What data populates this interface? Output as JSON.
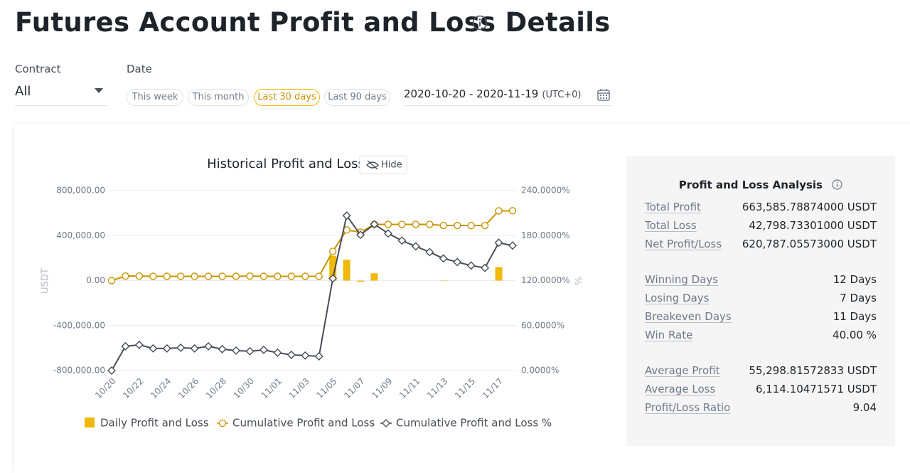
{
  "header": {
    "title": "Futures Account Profit and Loss Details"
  },
  "filters": {
    "contract_label": "Contract",
    "contract_value": "All",
    "date_label": "Date",
    "ranges": [
      "This week",
      "This month",
      "Last 30 days",
      "Last 90 days"
    ],
    "active_range": 2,
    "date_range": "2020-10-20 - 2020-11-19",
    "timezone": "(UTC+0)"
  },
  "chart_data": {
    "type": "line",
    "title": "Historical Profit and Loss",
    "hide_button": "Hide",
    "y_label": "USDT",
    "y2_label": "%",
    "categories": [
      "10/20",
      null,
      "10/22",
      null,
      "10/24",
      null,
      "10/26",
      null,
      "10/28",
      null,
      "10/30",
      null,
      "11/01",
      null,
      "11/03",
      null,
      "11/05",
      null,
      "11/07",
      null,
      "11/09",
      null,
      "11/11",
      null,
      "11/13",
      null,
      "11/15",
      null,
      "11/17",
      null
    ],
    "ylim": [
      -800000,
      800000
    ],
    "yticks": [
      {
        "value": -800000,
        "label": "-800,000.00"
      },
      {
        "value": -400000,
        "label": "-400,000.00"
      },
      {
        "value": 0,
        "label": "0.00"
      },
      {
        "value": 400000,
        "label": "400,000.00"
      },
      {
        "value": 800000,
        "label": "800,000.00"
      }
    ],
    "y2lim": [
      0,
      240
    ],
    "y2ticks": [
      {
        "value": 0,
        "label": "0.0000%"
      },
      {
        "value": 60,
        "label": "60.0000%"
      },
      {
        "value": 120,
        "label": "120.0000%"
      },
      {
        "value": 180,
        "label": "180.0000%"
      },
      {
        "value": 240,
        "label": "240.0000%"
      }
    ],
    "grid": true,
    "series": [
      {
        "name": "Daily Profit and Loss",
        "type": "bar",
        "color": "#f0b90b",
        "values": [
          0,
          0,
          0,
          0,
          0,
          0,
          0,
          0,
          0,
          0,
          0,
          0,
          0,
          0,
          0,
          0,
          220000,
          185000,
          -10000,
          65000,
          0,
          0,
          0,
          0,
          -3000,
          0,
          0,
          0,
          120000,
          0
        ]
      },
      {
        "name": "Cumulative Profit and Loss",
        "type": "line",
        "marker": "circle",
        "color": "#c99400",
        "values": [
          0,
          40000,
          40000,
          38000,
          38000,
          38000,
          38000,
          38000,
          38000,
          38000,
          40000,
          38000,
          38000,
          38000,
          38000,
          38000,
          260000,
          450000,
          430000,
          500000,
          500000,
          500000,
          500000,
          500000,
          490000,
          490000,
          490000,
          490000,
          620000,
          620787
        ]
      },
      {
        "name": "Cumulative Profit and Loss %",
        "type": "line",
        "marker": "diamond",
        "color": "#474d57",
        "axis": "y2",
        "values": [
          0,
          32.4,
          34.3,
          29.5,
          29.5,
          30.5,
          29.5,
          32.4,
          28.6,
          26.7,
          25.7,
          27.6,
          23.8,
          21,
          20,
          19,
          122.9,
          206.7,
          181,
          195.2,
          182.9,
          173.3,
          165.7,
          158,
          149.5,
          144.8,
          140,
          137,
          170.5,
          166.7
        ]
      }
    ]
  },
  "analysis": {
    "title": "Profit and Loss Analysis",
    "groups": [
      [
        {
          "label": "Total Profit",
          "value": "663,585.78874000 USDT"
        },
        {
          "label": "Total Loss",
          "value": "42,798.73301000 USDT"
        },
        {
          "label": "Net Profit/Loss",
          "value": "620,787.05573000 USDT"
        }
      ],
      [
        {
          "label": "Winning Days",
          "value": "12 Days"
        },
        {
          "label": "Losing Days",
          "value": "7 Days"
        },
        {
          "label": "Breakeven Days",
          "value": "11 Days"
        },
        {
          "label": "Win Rate",
          "value": "40.00 %"
        }
      ],
      [
        {
          "label": "Average Profit",
          "value": "55,298.81572833 USDT"
        },
        {
          "label": "Average Loss",
          "value": "6,114.10471571 USDT"
        },
        {
          "label": "Profit/Loss Ratio",
          "value": "9.04"
        }
      ]
    ]
  }
}
